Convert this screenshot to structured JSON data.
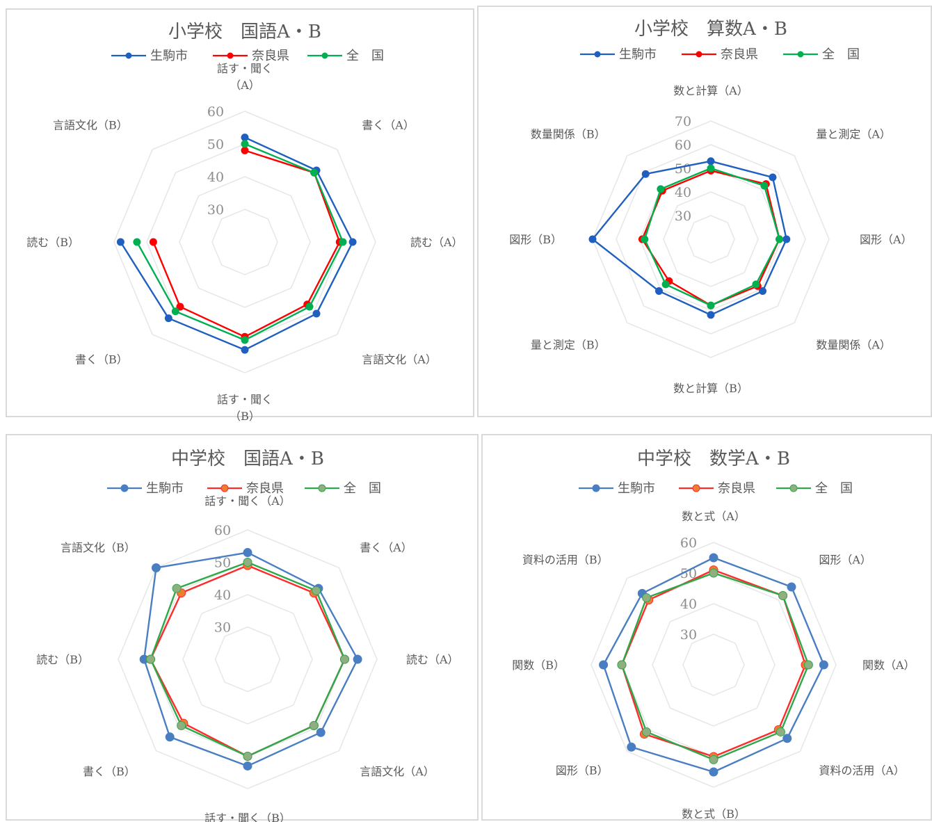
{
  "colors": {
    "ikoma_1": "#1f5fbf",
    "ikoma_2": "#4a7ec2",
    "nara_1": "#ff0000",
    "nara_2": "#ff2a2a",
    "nara_marker_2": "#ed7d31",
    "zenkoku_1": "#00b050",
    "zenkoku_2": "#2ea84a",
    "zenkoku_marker_2": "#8faf80",
    "grid": "#e6e6e6"
  },
  "chart_data": [
    {
      "type": "radar",
      "title": "小学校　国語A・B",
      "categories": [
        "話す・聞く\n（A）",
        "書く（A）",
        "読む（A）",
        "言語文化（A）",
        "話す・聞く\n（B）",
        "書く（B）",
        "読む（B）",
        "言語文化（B）"
      ],
      "rlim": [
        20,
        60
      ],
      "ticks": [
        30,
        40,
        50,
        60
      ],
      "legend": "top",
      "series": [
        {
          "name": "生駒市",
          "values": [
            52,
            51,
            53,
            51,
            53,
            53,
            58,
            null
          ]
        },
        {
          "name": "奈良県",
          "values": [
            48,
            50,
            49,
            47,
            49,
            48,
            48,
            null
          ]
        },
        {
          "name": "全　国",
          "values": [
            50,
            50,
            50,
            48,
            50,
            50,
            53,
            null
          ]
        }
      ]
    },
    {
      "type": "radar",
      "title": "小学校　算数A・B",
      "categories": [
        "数と計算（A）",
        "量と測定（A）",
        "図形（A）",
        "数量関係（A）",
        "数と計算（B）",
        "量と測定（B）",
        "図形（B）",
        "数量関係（B）"
      ],
      "rlim": [
        20,
        70
      ],
      "ticks": [
        30,
        40,
        50,
        60,
        70
      ],
      "legend": "top",
      "series": [
        {
          "name": "生駒市",
          "values": [
            53,
            57,
            52,
            51,
            52,
            51,
            70,
            59
          ]
        },
        {
          "name": "奈良県",
          "values": [
            49,
            53,
            49,
            48,
            48,
            45,
            49,
            49
          ]
        },
        {
          "name": "全　国",
          "values": [
            50,
            52,
            49,
            47,
            48,
            47,
            48,
            50
          ]
        }
      ]
    },
    {
      "type": "radar",
      "title": "中学校　国語A・B",
      "categories": [
        "話す・聞く（A）",
        "書く（A）",
        "読む（A）",
        "言語文化（A）",
        "話す・聞く（B）",
        "書く（B）",
        "読む（B）",
        "言語文化（B）"
      ],
      "rlim": [
        20,
        60
      ],
      "ticks": [
        30,
        40,
        50,
        60
      ],
      "legend": "top",
      "series": [
        {
          "name": "生駒市",
          "values": [
            53,
            51,
            54,
            52,
            53,
            54,
            52,
            60
          ]
        },
        {
          "name": "奈良県",
          "values": [
            49,
            49,
            50,
            49,
            50,
            48,
            50,
            49
          ]
        },
        {
          "name": "全　国",
          "values": [
            50,
            50,
            50,
            49,
            50,
            49,
            50,
            51
          ]
        }
      ]
    },
    {
      "type": "radar",
      "title": "中学校　数学A・B",
      "categories": [
        "数と式（A）",
        "図形（A）",
        "関数（A）",
        "資料の活用（A）",
        "数と式（B）",
        "図形（B）",
        "関数（B）",
        "資料の活用（B）"
      ],
      "rlim": [
        20,
        60
      ],
      "ticks": [
        30,
        40,
        50,
        60
      ],
      "legend": "top",
      "series": [
        {
          "name": "生駒市",
          "values": [
            55,
            56,
            56,
            54,
            55,
            58,
            56,
            53
          ]
        },
        {
          "name": "奈良県",
          "values": [
            51,
            52,
            50,
            50,
            50,
            52,
            50,
            50
          ]
        },
        {
          "name": "全　国",
          "values": [
            50,
            52,
            51,
            51,
            51,
            51,
            50,
            51
          ]
        }
      ]
    }
  ]
}
